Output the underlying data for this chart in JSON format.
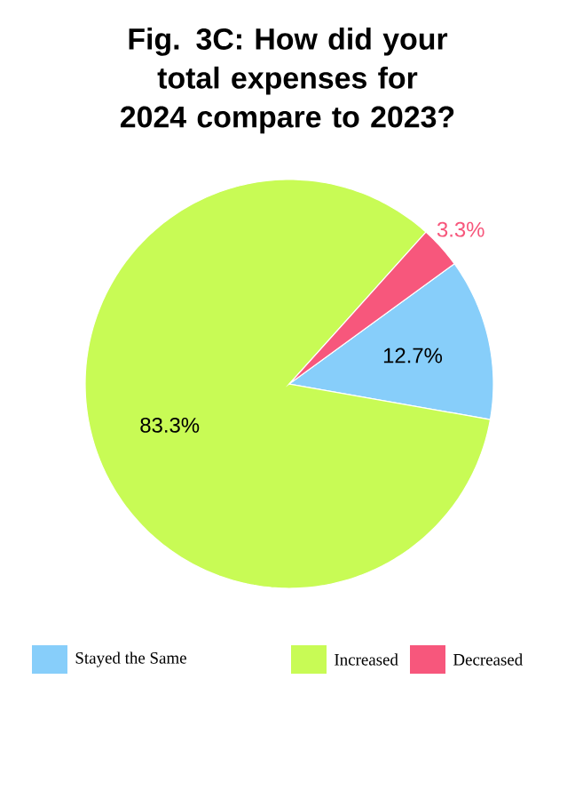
{
  "chart_data": {
    "type": "pie",
    "title": "Fig. 3C: How did your total expenses for 2024 compare to 2023?",
    "categories": [
      "Stayed the Same",
      "Increased",
      "Decreased"
    ],
    "values": [
      12.7,
      83.3,
      3.3
    ],
    "colors": [
      "#87cefa",
      "#c8fb55",
      "#f7577c"
    ],
    "value_labels": [
      "12.7%",
      "83.3%",
      "3.3%"
    ],
    "legend": "bottom"
  }
}
